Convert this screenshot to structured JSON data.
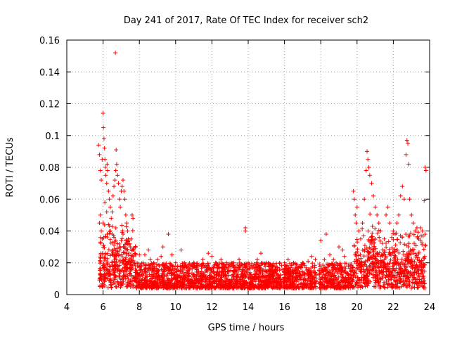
{
  "chart_data": {
    "type": "scatter",
    "title": "Day 241 of 2017, Rate Of TEC Index for receiver sch2",
    "xlabel": "GPS time / hours",
    "ylabel": "ROTI / TECUs",
    "xlim": [
      4,
      24
    ],
    "ylim": [
      0,
      0.16
    ],
    "x_ticks": [
      4,
      6,
      8,
      10,
      12,
      14,
      16,
      18,
      20,
      22,
      24
    ],
    "y_ticks": [
      0,
      0.02,
      0.04,
      0.06,
      0.08,
      0.1,
      0.12,
      0.14,
      0.16
    ],
    "x_tick_labels": [
      "4",
      "6",
      "8",
      "10",
      "12",
      "14",
      "16",
      "18",
      "20",
      "22",
      "24"
    ],
    "y_tick_labels": [
      "0",
      "0.02",
      "0.04",
      "0.06",
      "0.08",
      "0.1",
      "0.12",
      "0.14",
      "0.16"
    ],
    "grid": true,
    "marker": "+",
    "series": [
      {
        "name": "ROTI",
        "color": "#ff0000",
        "note": "Dense cloud of points 5.8-23.8 h mostly 0.003-0.03 TECU/s; representative points listed",
        "points": [
          [
            5.75,
            0.094
          ],
          [
            5.8,
            0.088
          ],
          [
            5.85,
            0.078
          ],
          [
            5.9,
            0.072
          ],
          [
            5.95,
            0.085
          ],
          [
            6.0,
            0.114
          ],
          [
            6.02,
            0.105
          ],
          [
            6.05,
            0.098
          ],
          [
            6.08,
            0.092
          ],
          [
            6.1,
            0.085
          ],
          [
            6.12,
            0.08
          ],
          [
            6.15,
            0.075
          ],
          [
            6.2,
            0.07
          ],
          [
            6.22,
            0.082
          ],
          [
            6.25,
            0.078
          ],
          [
            6.3,
            0.065
          ],
          [
            6.35,
            0.06
          ],
          [
            6.4,
            0.055
          ],
          [
            6.45,
            0.048
          ],
          [
            6.5,
            0.052
          ],
          [
            6.55,
            0.062
          ],
          [
            6.6,
            0.068
          ],
          [
            6.65,
            0.072
          ],
          [
            6.68,
            0.152
          ],
          [
            6.7,
            0.078
          ],
          [
            6.72,
            0.091
          ],
          [
            6.75,
            0.082
          ],
          [
            6.8,
            0.075
          ],
          [
            6.85,
            0.07
          ],
          [
            6.9,
            0.06
          ],
          [
            6.95,
            0.055
          ],
          [
            7.0,
            0.065
          ],
          [
            7.05,
            0.068
          ],
          [
            7.1,
            0.072
          ],
          [
            7.15,
            0.065
          ],
          [
            7.2,
            0.06
          ],
          [
            7.25,
            0.05
          ],
          [
            7.3,
            0.045
          ],
          [
            7.35,
            0.04
          ],
          [
            7.4,
            0.035
          ],
          [
            7.45,
            0.032
          ],
          [
            7.5,
            0.03
          ],
          [
            7.55,
            0.035
          ],
          [
            7.6,
            0.05
          ],
          [
            7.65,
            0.048
          ],
          [
            7.7,
            0.028
          ],
          [
            7.8,
            0.025
          ],
          [
            5.8,
            0.045
          ],
          [
            5.85,
            0.05
          ],
          [
            5.9,
            0.04
          ],
          [
            5.95,
            0.035
          ],
          [
            6.0,
            0.045
          ],
          [
            6.1,
            0.058
          ],
          [
            6.2,
            0.052
          ],
          [
            6.3,
            0.044
          ],
          [
            6.4,
            0.04
          ],
          [
            6.5,
            0.038
          ],
          [
            6.6,
            0.036
          ],
          [
            6.7,
            0.034
          ],
          [
            6.8,
            0.032
          ],
          [
            6.9,
            0.03
          ],
          [
            7.0,
            0.034
          ],
          [
            7.1,
            0.038
          ],
          [
            7.2,
            0.03
          ],
          [
            7.3,
            0.028
          ],
          [
            8.0,
            0.025
          ],
          [
            8.2,
            0.02
          ],
          [
            8.3,
            0.025
          ],
          [
            8.5,
            0.028
          ],
          [
            8.6,
            0.022
          ],
          [
            8.8,
            0.02
          ],
          [
            9.0,
            0.022
          ],
          [
            9.2,
            0.024
          ],
          [
            9.3,
            0.03
          ],
          [
            9.6,
            0.038
          ],
          [
            9.8,
            0.025
          ],
          [
            10.0,
            0.02
          ],
          [
            10.3,
            0.028
          ],
          [
            10.5,
            0.02
          ],
          [
            10.8,
            0.018
          ],
          [
            11.0,
            0.02
          ],
          [
            11.2,
            0.018
          ],
          [
            11.5,
            0.022
          ],
          [
            11.8,
            0.026
          ],
          [
            12.0,
            0.024
          ],
          [
            12.2,
            0.02
          ],
          [
            12.5,
            0.022
          ],
          [
            12.8,
            0.02
          ],
          [
            13.0,
            0.018
          ],
          [
            13.2,
            0.02
          ],
          [
            13.5,
            0.022
          ],
          [
            13.85,
            0.042
          ],
          [
            13.85,
            0.04
          ],
          [
            14.0,
            0.02
          ],
          [
            14.3,
            0.018
          ],
          [
            14.5,
            0.022
          ],
          [
            14.7,
            0.026
          ],
          [
            15.0,
            0.02
          ],
          [
            15.3,
            0.018
          ],
          [
            15.6,
            0.017
          ],
          [
            16.0,
            0.02
          ],
          [
            16.2,
            0.022
          ],
          [
            16.5,
            0.02
          ],
          [
            16.8,
            0.018
          ],
          [
            17.0,
            0.02
          ],
          [
            17.3,
            0.021
          ],
          [
            17.5,
            0.024
          ],
          [
            17.7,
            0.022
          ],
          [
            18.0,
            0.034
          ],
          [
            18.2,
            0.022
          ],
          [
            18.3,
            0.038
          ],
          [
            18.5,
            0.025
          ],
          [
            18.7,
            0.022
          ],
          [
            19.0,
            0.03
          ],
          [
            19.2,
            0.028
          ],
          [
            19.3,
            0.024
          ],
          [
            19.8,
            0.065
          ],
          [
            19.85,
            0.06
          ],
          [
            19.9,
            0.05
          ],
          [
            19.95,
            0.045
          ],
          [
            20.0,
            0.055
          ],
          [
            20.1,
            0.04
          ],
          [
            20.2,
            0.035
          ],
          [
            20.3,
            0.045
          ],
          [
            20.4,
            0.06
          ],
          [
            20.5,
            0.078
          ],
          [
            20.55,
            0.09
          ],
          [
            20.6,
            0.085
          ],
          [
            20.65,
            0.08
          ],
          [
            20.7,
            0.075
          ],
          [
            20.8,
            0.07
          ],
          [
            20.9,
            0.062
          ],
          [
            21.0,
            0.055
          ],
          [
            21.1,
            0.05
          ],
          [
            21.2,
            0.045
          ],
          [
            21.3,
            0.04
          ],
          [
            21.5,
            0.035
          ],
          [
            21.6,
            0.05
          ],
          [
            21.7,
            0.055
          ],
          [
            21.8,
            0.045
          ],
          [
            22.0,
            0.04
          ],
          [
            22.1,
            0.038
          ],
          [
            22.2,
            0.045
          ],
          [
            22.3,
            0.05
          ],
          [
            22.4,
            0.062
          ],
          [
            22.5,
            0.068
          ],
          [
            22.6,
            0.06
          ],
          [
            22.7,
            0.088
          ],
          [
            22.75,
            0.097
          ],
          [
            22.8,
            0.095
          ],
          [
            22.85,
            0.082
          ],
          [
            22.9,
            0.06
          ],
          [
            23.0,
            0.05
          ],
          [
            23.1,
            0.045
          ],
          [
            23.2,
            0.04
          ],
          [
            23.3,
            0.042
          ],
          [
            23.4,
            0.035
          ],
          [
            23.5,
            0.042
          ],
          [
            23.6,
            0.04
          ],
          [
            23.7,
            0.059
          ],
          [
            23.75,
            0.08
          ],
          [
            23.8,
            0.078
          ]
        ]
      }
    ]
  }
}
